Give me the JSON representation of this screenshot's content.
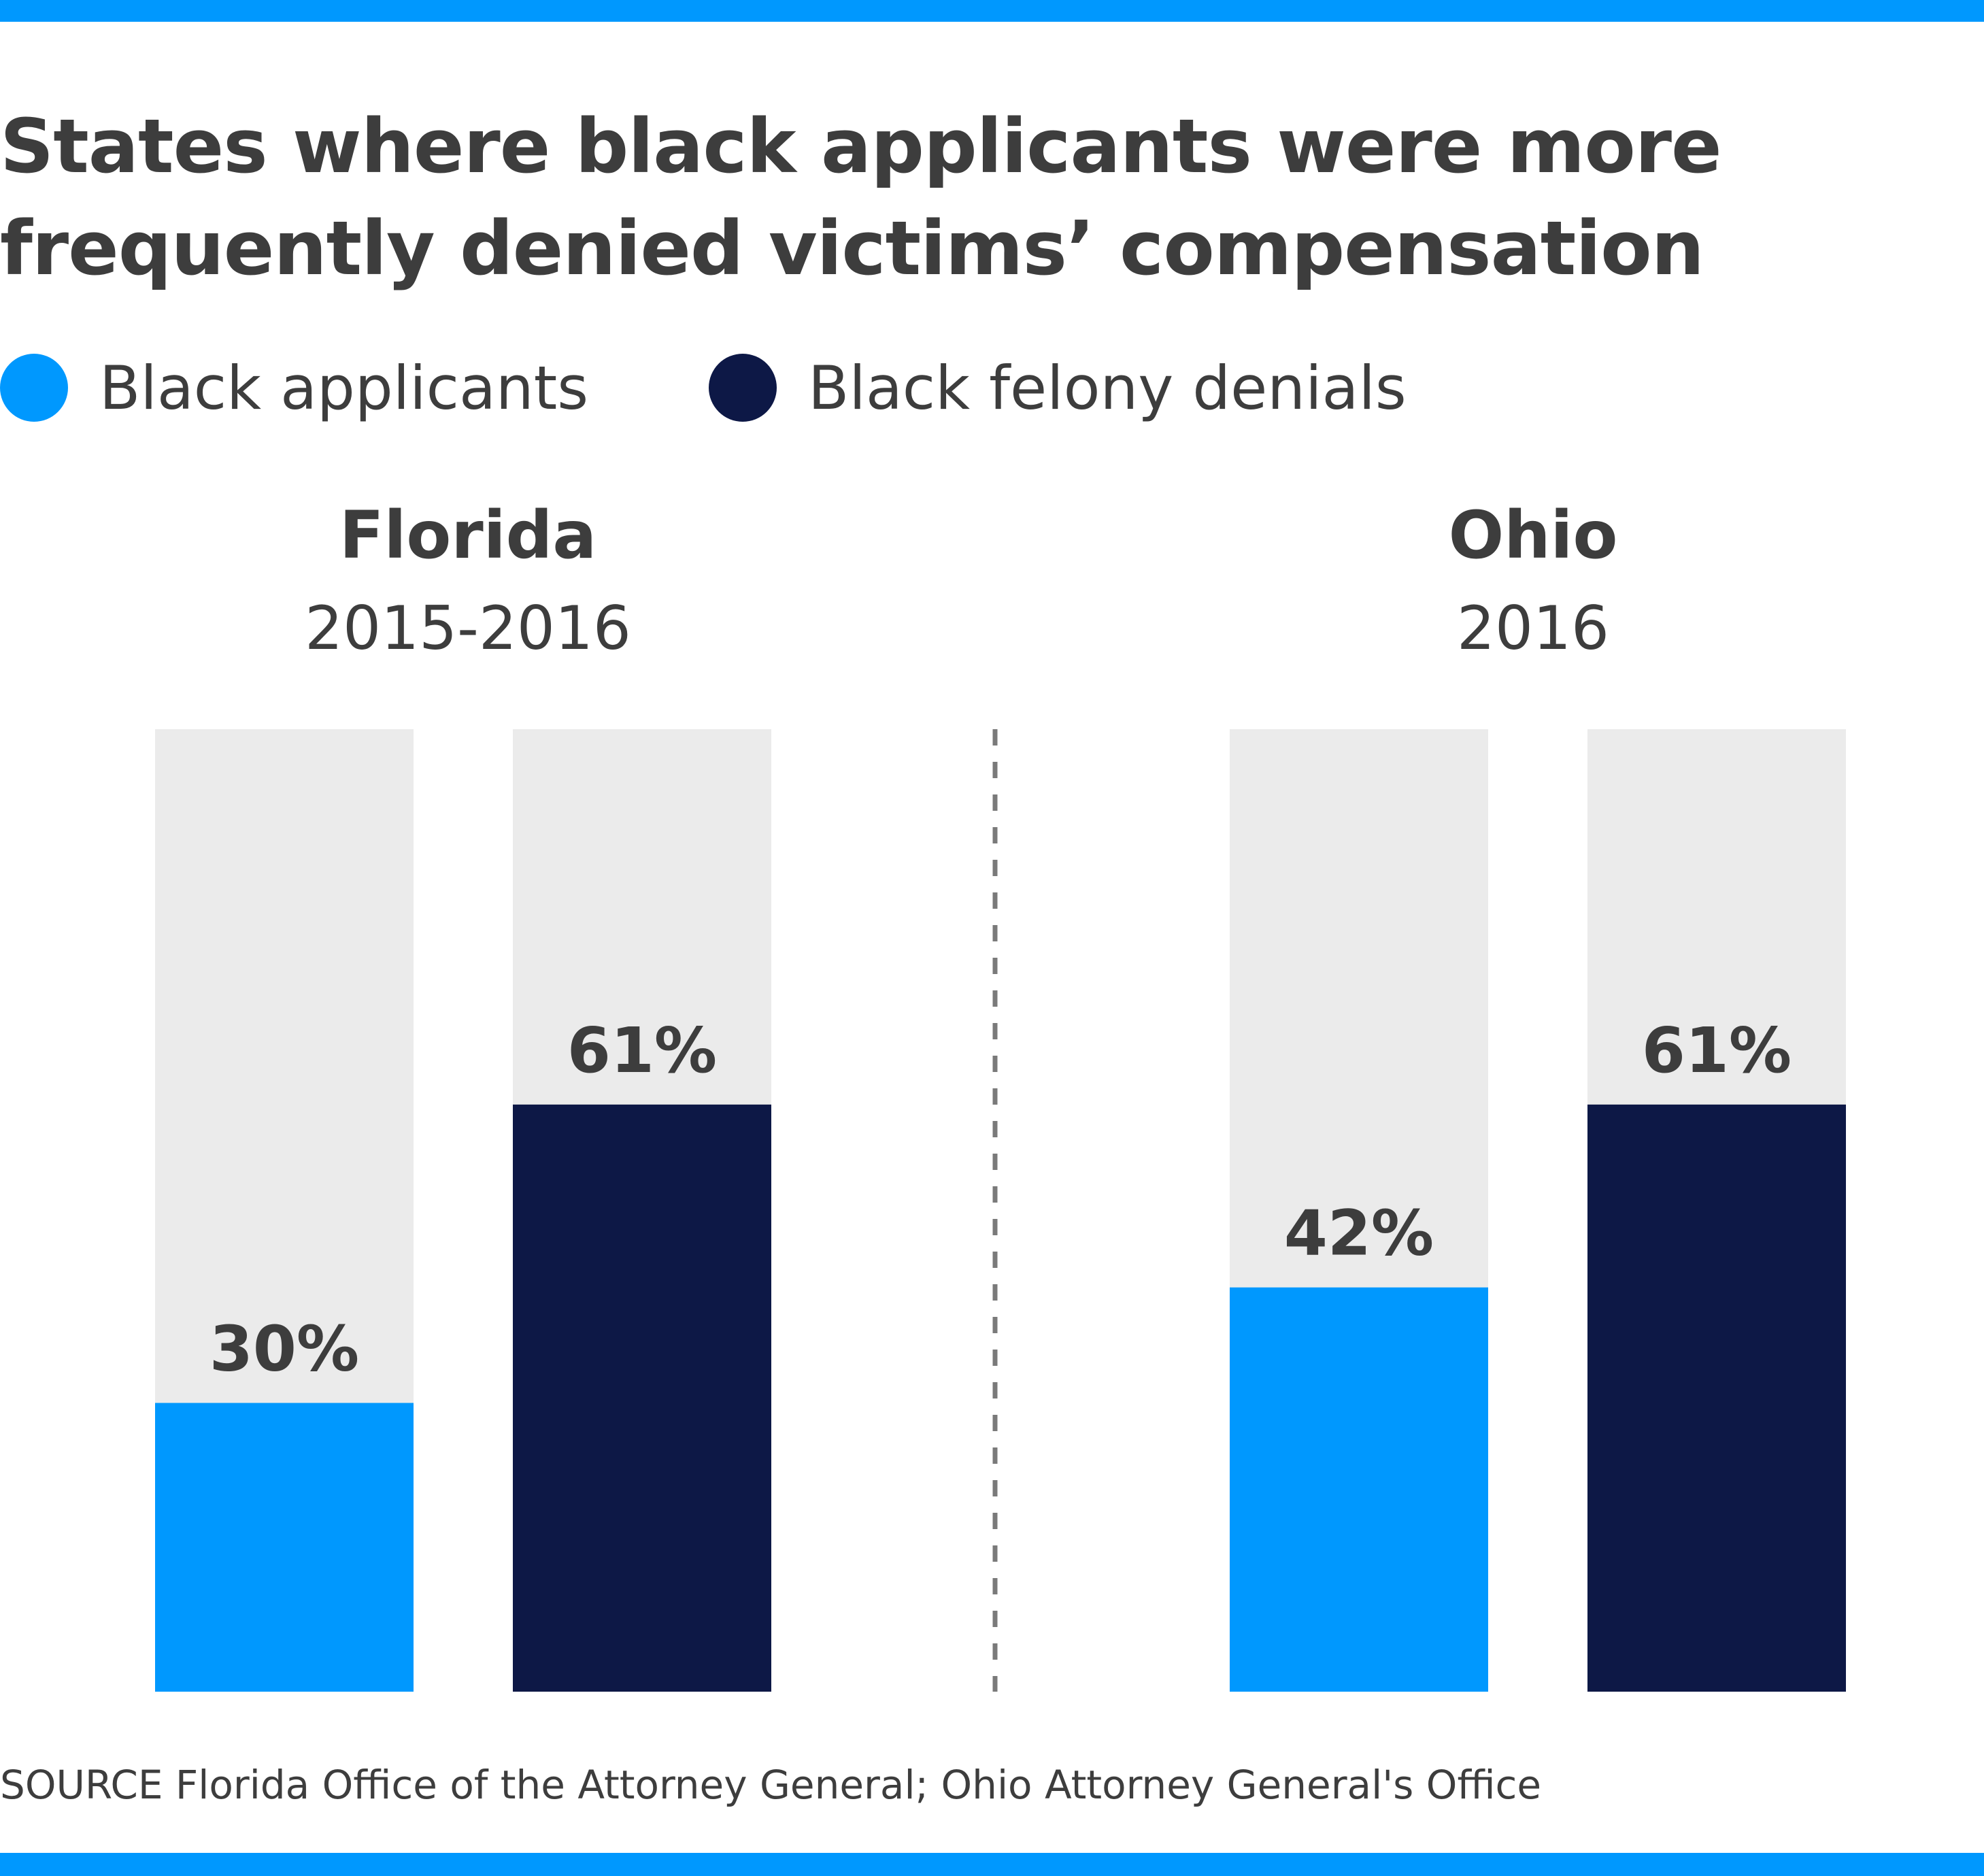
{
  "title": "States where black applicants were more frequently denied victims’ compensation",
  "legend": [
    {
      "label": "Black applicants",
      "color": "#0098fe"
    },
    {
      "label": "Black felony denials",
      "color": "#0d1846"
    }
  ],
  "source": "SOURCE Florida Office of the Attorney General; Ohio Attorney General's Office",
  "chart_data": {
    "type": "bar",
    "ylim": [
      0,
      100
    ],
    "value_format": "percent",
    "colors": {
      "track": "#ebebeb",
      "divider": "#7a7a7a"
    },
    "groups": [
      {
        "name": "Florida",
        "period": "2015-2016",
        "values": [
          30,
          61
        ],
        "labels": [
          "30%",
          "61%"
        ]
      },
      {
        "name": "Ohio",
        "period": "2016",
        "values": [
          42,
          61
        ],
        "labels": [
          "42%",
          "61%"
        ]
      }
    ],
    "series": [
      {
        "name": "Black applicants",
        "color": "#0098fe"
      },
      {
        "name": "Black felony denials",
        "color": "#0d1846"
      }
    ]
  }
}
